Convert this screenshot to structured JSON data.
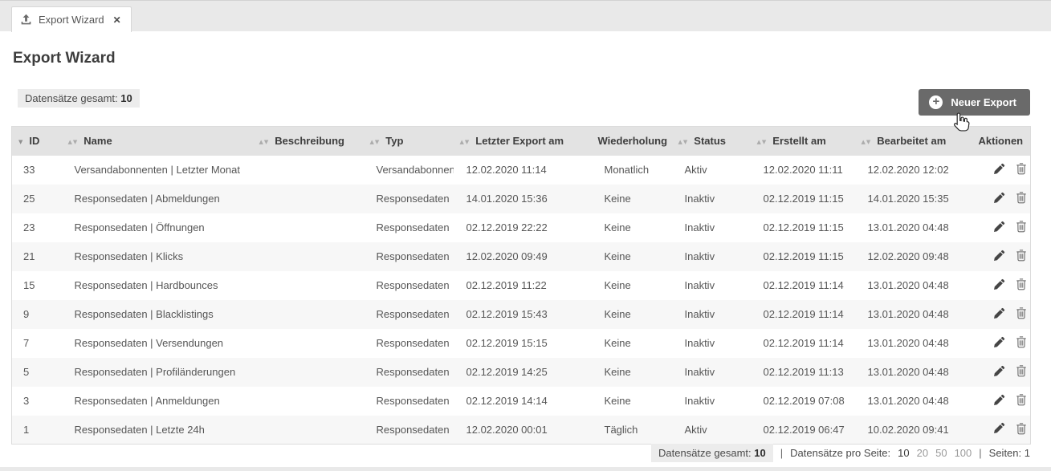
{
  "tab": {
    "label": "Export Wizard",
    "close_glyph": "✕"
  },
  "page": {
    "title": "Export Wizard"
  },
  "toolbar": {
    "total_label": "Datensätze gesamt:",
    "total_value": "10",
    "plus_glyph": "+",
    "new_export_label": "Neuer Export"
  },
  "table": {
    "columns": [
      {
        "label": "ID",
        "sort": "desc"
      },
      {
        "label": "Name",
        "sort": "both"
      },
      {
        "label": "Beschreibung",
        "sort": "both"
      },
      {
        "label": "Typ",
        "sort": "both"
      },
      {
        "label": "Letzter Export am",
        "sort": "both"
      },
      {
        "label": "Wiederholung",
        "sort": "none"
      },
      {
        "label": "Status",
        "sort": "both"
      },
      {
        "label": "Erstellt am",
        "sort": "both"
      },
      {
        "label": "Bearbeitet am",
        "sort": "both"
      },
      {
        "label": "Aktionen",
        "sort": "none"
      }
    ],
    "rows": [
      {
        "id": "33",
        "name": "Versandabonnenten | Letzter Monat",
        "beschreibung": "",
        "typ": "Versandabonnenten",
        "letzter_export": "12.02.2020 11:14",
        "wiederholung": "Monatlich",
        "status": "Aktiv",
        "erstellt": "12.02.2020 11:11",
        "bearbeitet": "12.02.2020 12:02"
      },
      {
        "id": "25",
        "name": "Responsedaten | Abmeldungen",
        "beschreibung": "",
        "typ": "Responsedaten",
        "letzter_export": "14.01.2020 15:36",
        "wiederholung": "Keine",
        "status": "Inaktiv",
        "erstellt": "02.12.2019 11:15",
        "bearbeitet": "14.01.2020 15:35"
      },
      {
        "id": "23",
        "name": "Responsedaten | Öffnungen",
        "beschreibung": "",
        "typ": "Responsedaten",
        "letzter_export": "02.12.2019 22:22",
        "wiederholung": "Keine",
        "status": "Inaktiv",
        "erstellt": "02.12.2019 11:15",
        "bearbeitet": "13.01.2020 04:48"
      },
      {
        "id": "21",
        "name": "Responsedaten | Klicks",
        "beschreibung": "",
        "typ": "Responsedaten",
        "letzter_export": "12.02.2020 09:49",
        "wiederholung": "Keine",
        "status": "Inaktiv",
        "erstellt": "02.12.2019 11:15",
        "bearbeitet": "12.02.2020 09:48"
      },
      {
        "id": "15",
        "name": "Responsedaten | Hardbounces",
        "beschreibung": "",
        "typ": "Responsedaten",
        "letzter_export": "02.12.2019 11:22",
        "wiederholung": "Keine",
        "status": "Inaktiv",
        "erstellt": "02.12.2019 11:14",
        "bearbeitet": "13.01.2020 04:48"
      },
      {
        "id": "9",
        "name": "Responsedaten | Blacklistings",
        "beschreibung": "",
        "typ": "Responsedaten",
        "letzter_export": "02.12.2019 15:43",
        "wiederholung": "Keine",
        "status": "Inaktiv",
        "erstellt": "02.12.2019 11:14",
        "bearbeitet": "13.01.2020 04:48"
      },
      {
        "id": "7",
        "name": "Responsedaten | Versendungen",
        "beschreibung": "",
        "typ": "Responsedaten",
        "letzter_export": "02.12.2019 15:15",
        "wiederholung": "Keine",
        "status": "Inaktiv",
        "erstellt": "02.12.2019 11:14",
        "bearbeitet": "13.01.2020 04:48"
      },
      {
        "id": "5",
        "name": "Responsedaten | Profiländerungen",
        "beschreibung": "",
        "typ": "Responsedaten",
        "letzter_export": "02.12.2019 14:25",
        "wiederholung": "Keine",
        "status": "Inaktiv",
        "erstellt": "02.12.2019 11:13",
        "bearbeitet": "13.01.2020 04:48"
      },
      {
        "id": "3",
        "name": "Responsedaten | Anmeldungen",
        "beschreibung": "",
        "typ": "Responsedaten",
        "letzter_export": "02.12.2019 14:14",
        "wiederholung": "Keine",
        "status": "Inaktiv",
        "erstellt": "02.12.2019 07:08",
        "bearbeitet": "13.01.2020 04:48"
      },
      {
        "id": "1",
        "name": "Responsedaten | Letzte 24h",
        "beschreibung": "",
        "typ": "Responsedaten",
        "letzter_export": "12.02.2020 00:01",
        "wiederholung": "Täglich",
        "status": "Aktiv",
        "erstellt": "02.12.2019 06:47",
        "bearbeitet": "10.02.2020 09:41"
      }
    ]
  },
  "footer": {
    "total_label": "Datensätze gesamt:",
    "total_value": "10",
    "sep": "|",
    "per_page_label": "Datensätze pro Seite:",
    "per_page_options": [
      "10",
      "20",
      "50",
      "100"
    ],
    "per_page_current": "10",
    "pages_label": "Seiten:",
    "pages_value": "1"
  },
  "colors": {
    "accent_button": "#6a6a6a",
    "table_header_bg": "#e3e3e3",
    "row_alt_bg": "#f7f7f7",
    "badge_bg": "#ececec",
    "text_primary": "#3d3d3d",
    "text_secondary": "#565656",
    "muted_link": "#9a9a9a"
  }
}
